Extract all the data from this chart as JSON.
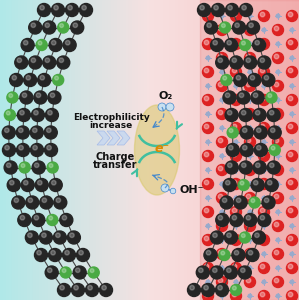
{
  "carbon_color": "#252525",
  "nitrogen_color": "#4aaa44",
  "vanadium_color": "#cc2222",
  "vn_small_color": "#8899bb",
  "interface_bg": "#d8c86a",
  "teal_color": "#40bfa0",
  "dashed_color": "#4488cc",
  "oh_atom_color": "#99bbdd",
  "arrow_fill": "#c8d8f0",
  "arrow_stroke": "#a0b8e8",
  "text_color": "#111111",
  "e_color": "#dd8800",
  "charge_text": "Charge\ntransfer",
  "electro_text": "Electrophilicity\nincrease",
  "oh_label": "OH⁻",
  "o2_label": "O₂",
  "e_label": "e⁻"
}
